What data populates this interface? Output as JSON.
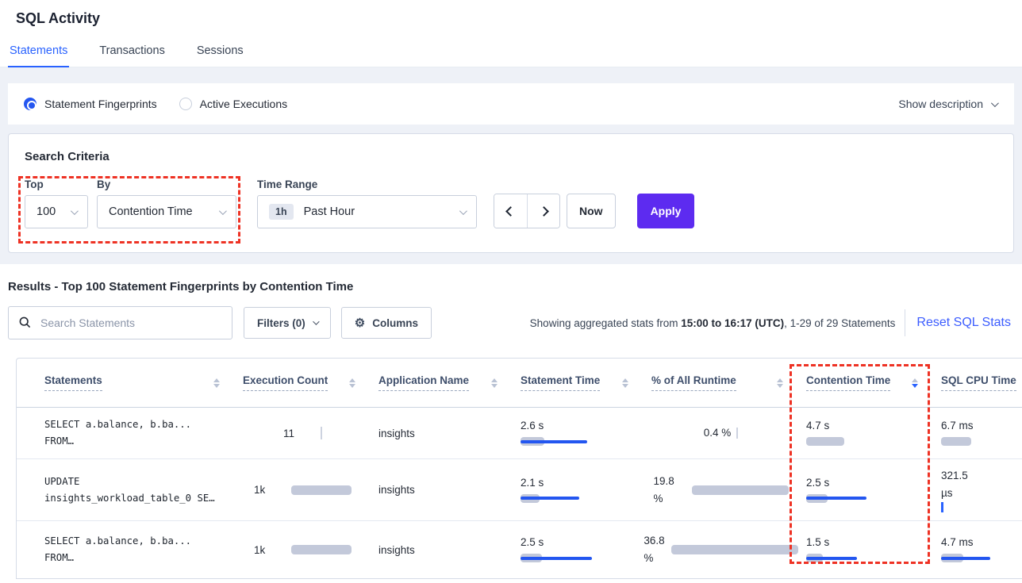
{
  "page_title": "SQL Activity",
  "tabs": {
    "items": [
      {
        "label": "Statements",
        "active": true
      },
      {
        "label": "Transactions",
        "active": false
      },
      {
        "label": "Sessions",
        "active": false
      }
    ]
  },
  "view_toggle": {
    "fingerprints_label": "Statement Fingerprints",
    "active_executions_label": "Active Executions",
    "show_description_label": "Show description"
  },
  "search_criteria": {
    "heading": "Search Criteria",
    "top_label": "Top",
    "top_value": "100",
    "by_label": "By",
    "by_value": "Contention Time",
    "time_range_label": "Time Range",
    "time_range_badge": "1h",
    "time_range_value": "Past Hour",
    "now_label": "Now",
    "apply_label": "Apply"
  },
  "results": {
    "heading": "Results - Top 100 Statement Fingerprints by Contention Time",
    "search_placeholder": "Search Statements",
    "filters_label": "Filters (0)",
    "columns_label": "Columns",
    "stats_prefix": "Showing aggregated stats from ",
    "stats_range": "15:00 to 16:17 (UTC)",
    "stats_suffix": ", 1-29 of 29 Statements",
    "reset_label": "Reset SQL Stats"
  },
  "table": {
    "columns": [
      {
        "label": "Statements",
        "sort": "none"
      },
      {
        "label": "Execution Count",
        "sort": "none"
      },
      {
        "label": "Application Name",
        "sort": "none"
      },
      {
        "label": "Statement Time",
        "sort": "none"
      },
      {
        "label": "% of All Runtime",
        "sort": "none"
      },
      {
        "label": "Contention Time",
        "sort": "desc"
      },
      {
        "label": "SQL CPU Time",
        "sort": "none"
      }
    ],
    "rows": [
      {
        "statement_line1": "SELECT a.balance, b.ba...",
        "statement_line2": "FROM…",
        "execution_count": "11",
        "exec_bar": 2,
        "application_name": "insights",
        "statement_time": {
          "value": "2.6 s",
          "bar": 30,
          "line": 84
        },
        "runtime": {
          "value": "0.4 %",
          "bar": 0
        },
        "contention_time": {
          "value": "4.7 s",
          "bar": 48,
          "line": 0
        },
        "sql_cpu": {
          "value": "6.7 ms",
          "bar": 38,
          "line": 0
        }
      },
      {
        "statement_line1": "UPDATE",
        "statement_line2": "insights_workload_table_0 SE…",
        "execution_count": "1k",
        "exec_bar": 76,
        "application_name": "insights",
        "statement_time": {
          "value": "2.1 s",
          "bar": 24,
          "line": 74
        },
        "runtime": {
          "value": "19.8 %",
          "bar": 122
        },
        "contention_time": {
          "value": "2.5 s",
          "bar": 27,
          "line": 76
        },
        "sql_cpu": {
          "value": "321.5 µs",
          "bar": 0,
          "line": 0,
          "tick": 3
        }
      },
      {
        "statement_line1": "SELECT a.balance, b.ba...",
        "statement_line2": "FROM…",
        "execution_count": "1k",
        "exec_bar": 76,
        "application_name": "insights",
        "statement_time": {
          "value": "2.5 s",
          "bar": 27,
          "line": 90
        },
        "runtime": {
          "value": "36.8 %",
          "bar": 160
        },
        "contention_time": {
          "value": "1.5 s",
          "bar": 21,
          "line": 64
        },
        "sql_cpu": {
          "value": "4.7 ms",
          "bar": 28,
          "line": 62
        }
      }
    ]
  },
  "annotations": {
    "highlight_color": "#ee3224",
    "highlighted_regions": [
      "top-by-criteria",
      "contention-time-column"
    ]
  },
  "colors": {
    "accent_blue": "#2962ff",
    "apply_purple": "#5d2bf0",
    "bar_gray": "#c3c9da",
    "bar_blue": "#2356f0"
  }
}
